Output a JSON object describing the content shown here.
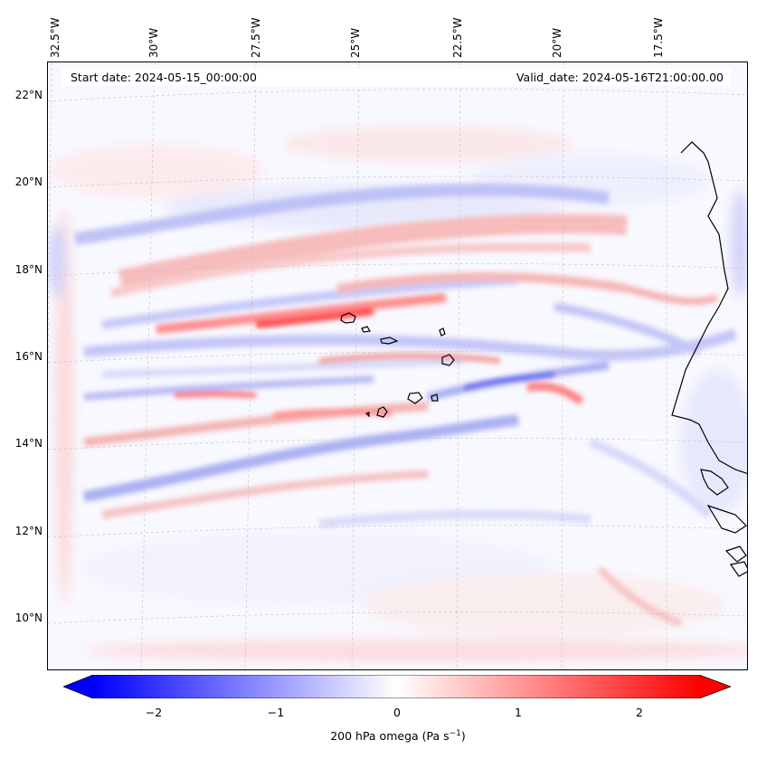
{
  "map": {
    "start_date": "Start date: 2024-05-15_00:00:00",
    "valid_date": "Valid_date: 2024-05-16T21:00:00.00",
    "lon_labels": [
      "32.5°W",
      "30°W",
      "27.5°W",
      "25°W",
      "22.5°W",
      "20°W",
      "17.5°W"
    ],
    "lat_labels": [
      "22°N",
      "20°N",
      "18°N",
      "16°N",
      "14°N",
      "12°N",
      "10°N"
    ],
    "field": "200 hPa omega",
    "features": [
      {
        "name": "cape-verde-islands",
        "type": "coastline"
      },
      {
        "name": "west-africa-coast",
        "type": "coastline"
      }
    ]
  },
  "colorbar": {
    "label": "200 hPa omega (Pa s⁻¹)",
    "label_main": "200 hPa omega (Pa s",
    "label_exp": "−1",
    "label_close": ")",
    "min": -2.5,
    "max": 2.5,
    "ticks": [
      "−2",
      "−1",
      "0",
      "1",
      "2"
    ],
    "tick_values": [
      -2,
      -1,
      0,
      1,
      2
    ],
    "negative_color": "#0000ff",
    "positive_color": "#ff0000",
    "center_color": "#ffffff",
    "extend": "both"
  }
}
